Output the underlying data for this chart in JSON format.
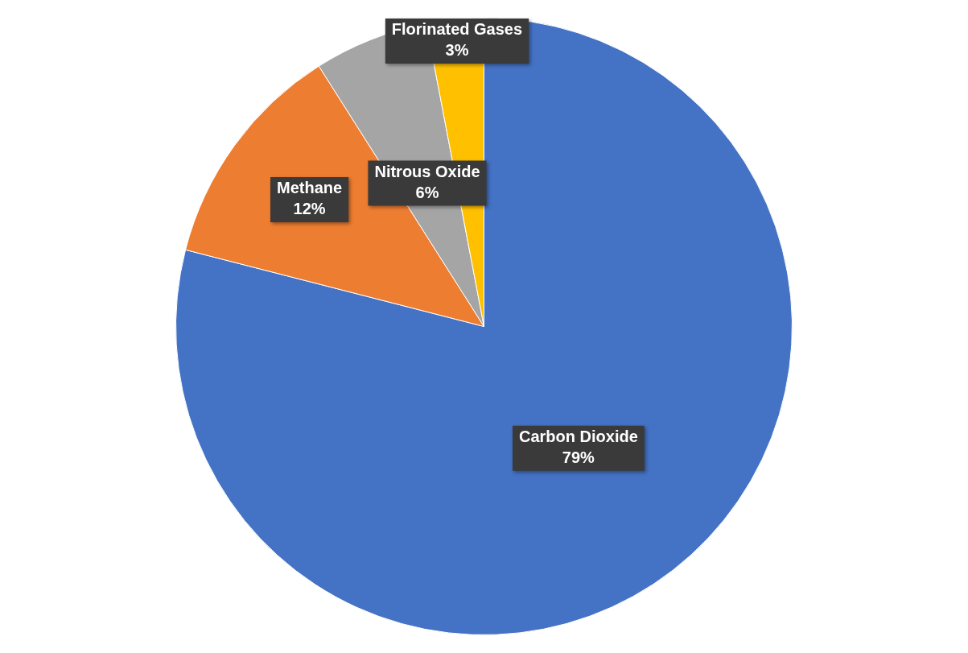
{
  "chart_data": {
    "type": "pie",
    "categories": [
      "Carbon Dioxide",
      "Methane",
      "Nitrous Oxide",
      "Florinated Gases"
    ],
    "values": [
      79,
      12,
      6,
      3
    ],
    "value_labels": [
      "79%",
      "12%",
      "6%",
      "3%"
    ],
    "colors": [
      "#4472c4",
      "#ed7d31",
      "#a5a5a5",
      "#ffc000"
    ]
  }
}
